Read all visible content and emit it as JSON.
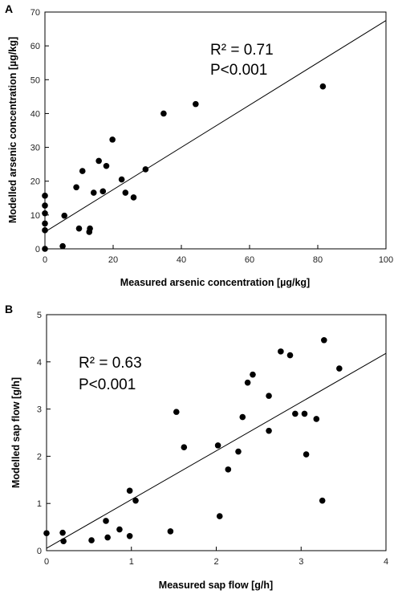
{
  "chart_data": [
    {
      "type": "scatter",
      "panel_label": "A",
      "title": "",
      "xlabel": "Measured arsenic concentration [µg/kg]",
      "ylabel": "Modelled arsenic concentration [µg/kg]",
      "xlim": [
        0,
        100
      ],
      "ylim": [
        0,
        70
      ],
      "xticks": [
        0,
        20,
        40,
        60,
        80,
        100
      ],
      "yticks": [
        0,
        10,
        20,
        30,
        40,
        50,
        60,
        70
      ],
      "grid": false,
      "annotation_r2": "R² = 0.71",
      "annotation_p": "P<0.001",
      "trendline": {
        "x": [
          0,
          100
        ],
        "y": [
          5.0,
          67.5
        ]
      },
      "points": [
        {
          "x": 0,
          "y": 0
        },
        {
          "x": 0,
          "y": 5.5
        },
        {
          "x": 0,
          "y": 7.5
        },
        {
          "x": 0,
          "y": 10.5
        },
        {
          "x": 0,
          "y": 12.8
        },
        {
          "x": 0,
          "y": 15.7
        },
        {
          "x": 5.2,
          "y": 0.8
        },
        {
          "x": 5.7,
          "y": 9.8
        },
        {
          "x": 9.2,
          "y": 18.2
        },
        {
          "x": 10.0,
          "y": 6.0
        },
        {
          "x": 11.0,
          "y": 23.0
        },
        {
          "x": 13.0,
          "y": 5.0
        },
        {
          "x": 13.2,
          "y": 6.0
        },
        {
          "x": 14.3,
          "y": 16.6
        },
        {
          "x": 15.8,
          "y": 26.0
        },
        {
          "x": 17.0,
          "y": 17.0
        },
        {
          "x": 18.0,
          "y": 24.5
        },
        {
          "x": 19.8,
          "y": 32.3
        },
        {
          "x": 22.5,
          "y": 20.5
        },
        {
          "x": 23.6,
          "y": 16.6
        },
        {
          "x": 26.0,
          "y": 15.2
        },
        {
          "x": 29.5,
          "y": 23.5
        },
        {
          "x": 34.8,
          "y": 40.0
        },
        {
          "x": 44.2,
          "y": 42.8
        },
        {
          "x": 81.5,
          "y": 48.0
        }
      ]
    },
    {
      "type": "scatter",
      "panel_label": "B",
      "title": "",
      "xlabel": "Measured sap flow [g/h]",
      "ylabel": "Modelled sap flow [g/h]",
      "xlim": [
        0,
        4
      ],
      "ylim": [
        0,
        5
      ],
      "xticks": [
        0,
        1,
        2,
        3,
        4
      ],
      "yticks": [
        0,
        1,
        2,
        3,
        4,
        5
      ],
      "grid": false,
      "annotation_r2": "R² = 0.63",
      "annotation_p": "P<0.001",
      "trendline": {
        "x": [
          0,
          4
        ],
        "y": [
          0.05,
          4.18
        ]
      },
      "points": [
        {
          "x": 0.0,
          "y": 0.37
        },
        {
          "x": 0.19,
          "y": 0.38
        },
        {
          "x": 0.2,
          "y": 0.2
        },
        {
          "x": 0.53,
          "y": 0.22
        },
        {
          "x": 0.7,
          "y": 0.63
        },
        {
          "x": 0.72,
          "y": 0.28
        },
        {
          "x": 0.86,
          "y": 0.45
        },
        {
          "x": 0.98,
          "y": 0.31
        },
        {
          "x": 0.98,
          "y": 1.27
        },
        {
          "x": 1.05,
          "y": 1.06
        },
        {
          "x": 1.46,
          "y": 0.41
        },
        {
          "x": 1.53,
          "y": 2.94
        },
        {
          "x": 1.62,
          "y": 2.19
        },
        {
          "x": 2.02,
          "y": 2.23
        },
        {
          "x": 2.04,
          "y": 0.73
        },
        {
          "x": 2.14,
          "y": 1.72
        },
        {
          "x": 2.26,
          "y": 2.1
        },
        {
          "x": 2.31,
          "y": 2.83
        },
        {
          "x": 2.37,
          "y": 3.56
        },
        {
          "x": 2.43,
          "y": 3.73
        },
        {
          "x": 2.62,
          "y": 3.28
        },
        {
          "x": 2.62,
          "y": 2.54
        },
        {
          "x": 2.76,
          "y": 4.22
        },
        {
          "x": 2.87,
          "y": 4.14
        },
        {
          "x": 2.93,
          "y": 2.9
        },
        {
          "x": 3.04,
          "y": 2.9
        },
        {
          "x": 3.06,
          "y": 2.04
        },
        {
          "x": 3.18,
          "y": 2.79
        },
        {
          "x": 3.25,
          "y": 1.06
        },
        {
          "x": 3.27,
          "y": 4.46
        },
        {
          "x": 3.45,
          "y": 3.86
        }
      ]
    }
  ]
}
